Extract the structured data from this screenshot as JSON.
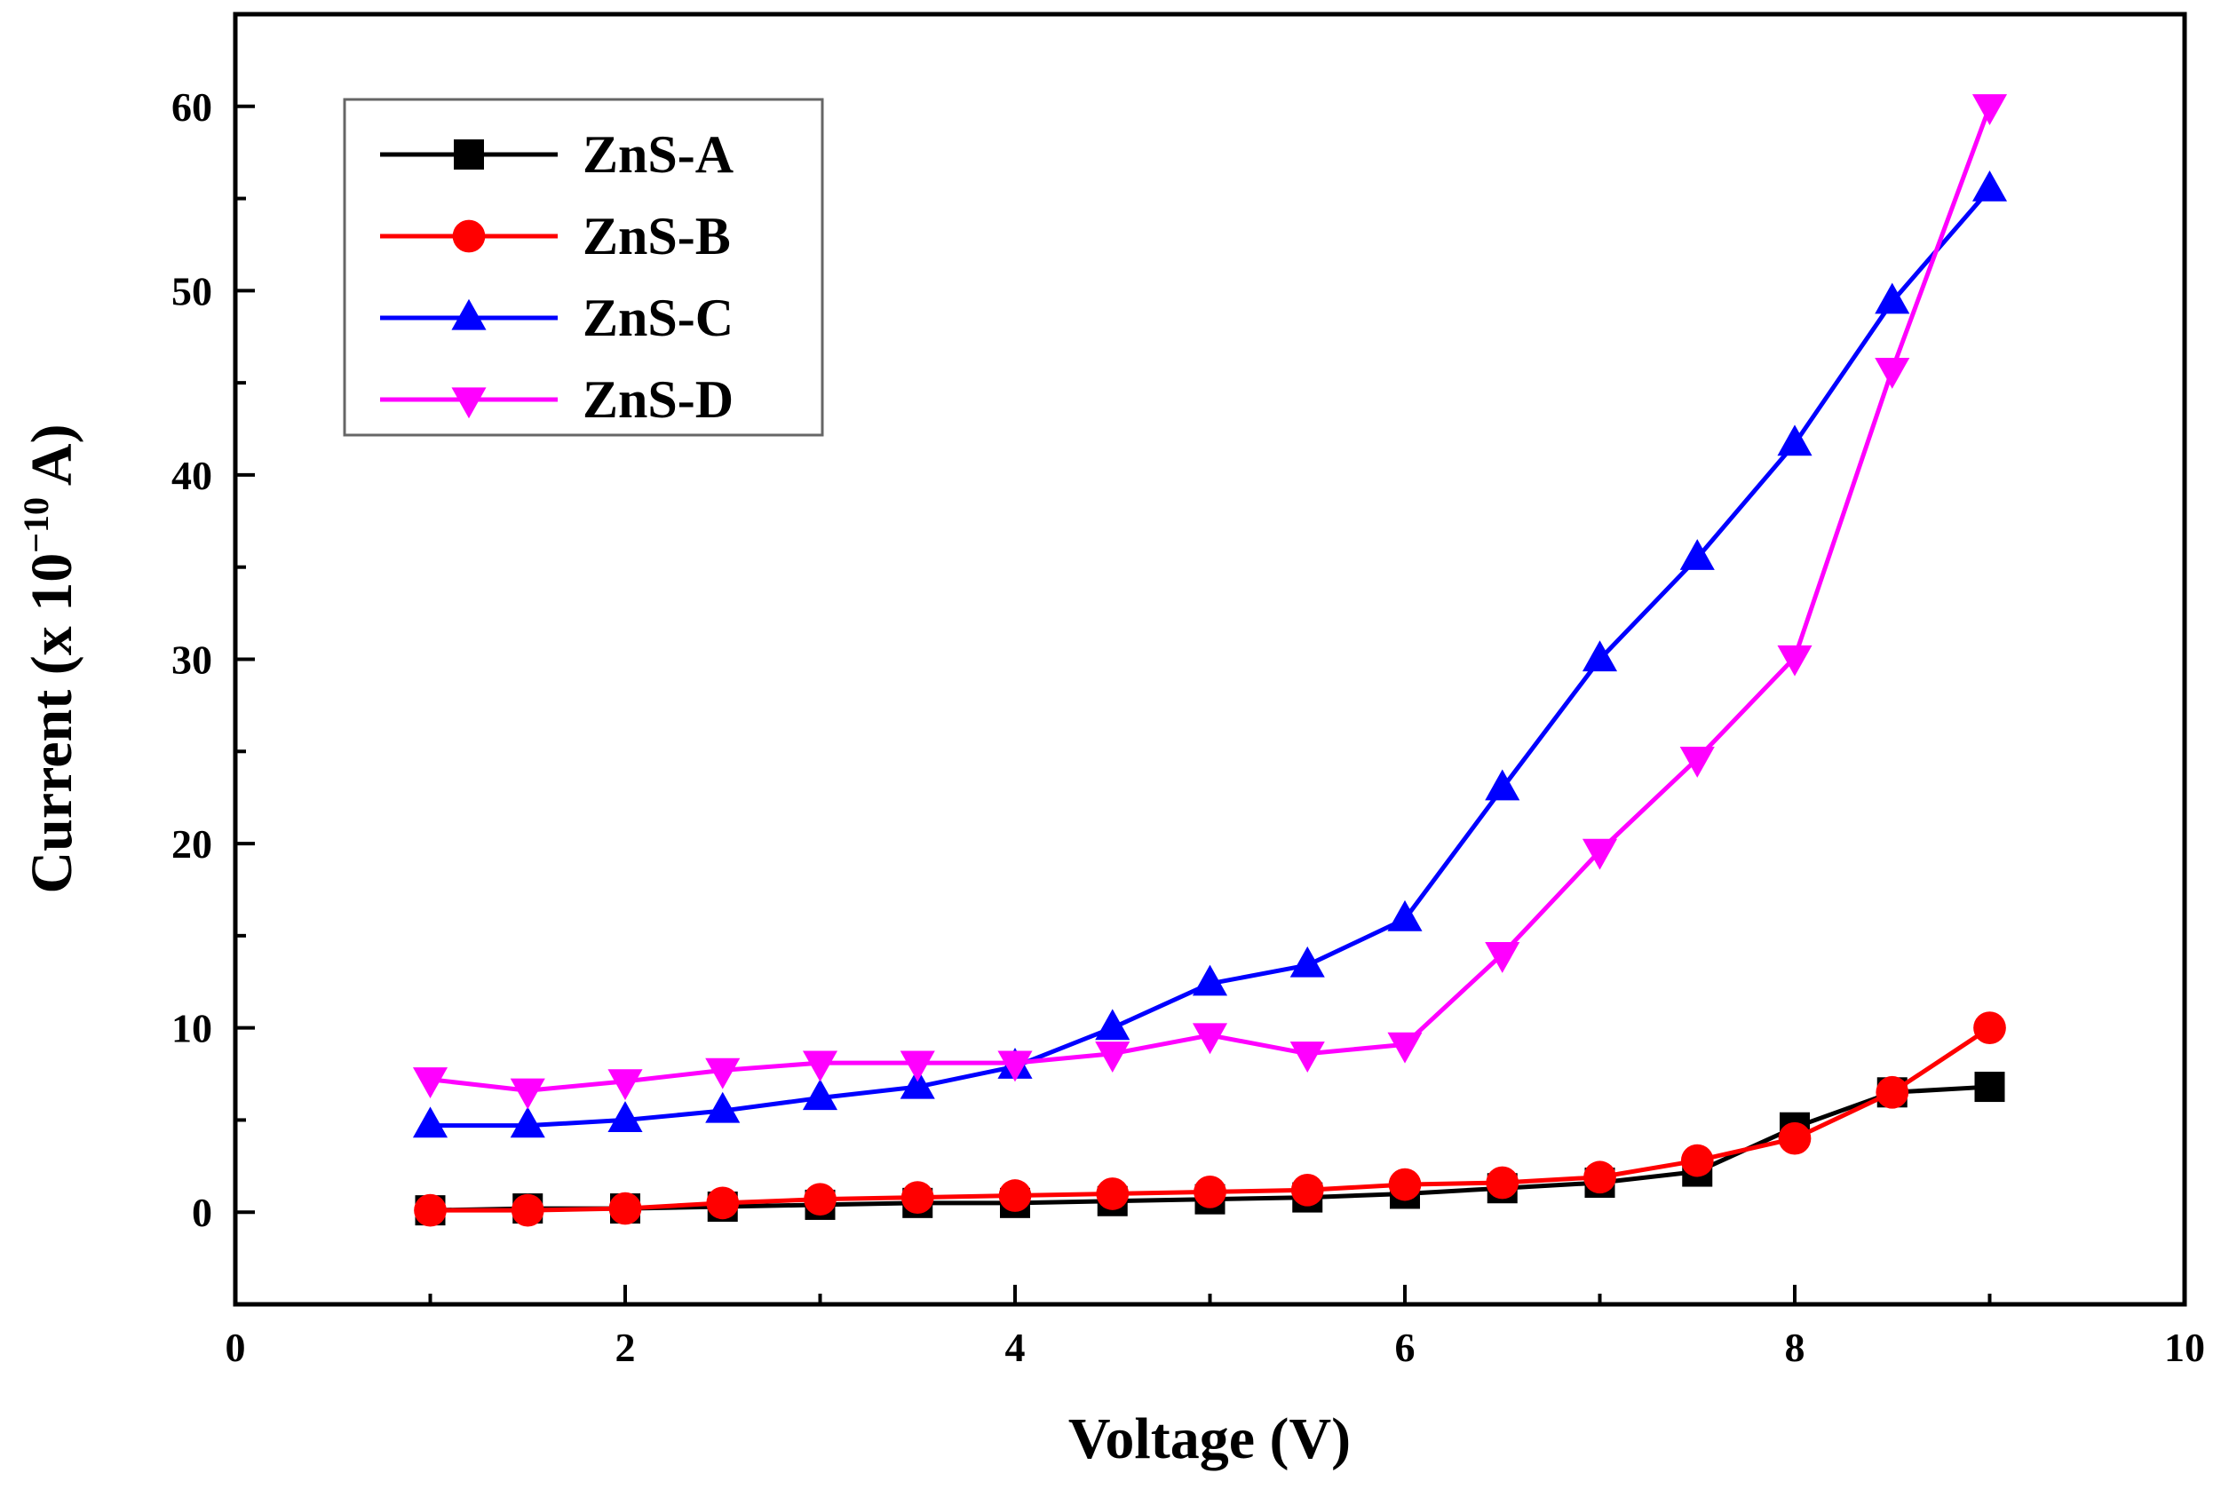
{
  "chart_data": {
    "type": "line",
    "title": "",
    "xlabel": "Voltage (V)",
    "ylabel": {
      "prefix": "Current (x 10",
      "exponent": "−10",
      "suffix": " A)"
    },
    "xlim": [
      0,
      10
    ],
    "ylim": [
      -5,
      65
    ],
    "xticks": [
      0,
      2,
      4,
      6,
      8,
      10
    ],
    "yticks": [
      0,
      10,
      20,
      30,
      40,
      50,
      60
    ],
    "grid": false,
    "legend_position": "top-left",
    "x": [
      1,
      1.5,
      2,
      2.5,
      3,
      3.5,
      4,
      4.5,
      5,
      5.5,
      6,
      6.5,
      7,
      7.5,
      8,
      8.5,
      9
    ],
    "series": [
      {
        "name": "ZnS-A",
        "color": "#000000",
        "marker": "square",
        "values": [
          0.1,
          0.2,
          0.2,
          0.3,
          0.4,
          0.5,
          0.5,
          0.6,
          0.7,
          0.8,
          1.0,
          1.3,
          1.6,
          2.2,
          4.6,
          6.5,
          6.8
        ]
      },
      {
        "name": "ZnS-B",
        "color": "#ff0000",
        "marker": "circle",
        "values": [
          0.1,
          0.1,
          0.2,
          0.5,
          0.7,
          0.8,
          0.9,
          1.0,
          1.1,
          1.2,
          1.5,
          1.6,
          1.9,
          2.8,
          4.0,
          6.5,
          10.0
        ]
      },
      {
        "name": "ZnS-C",
        "color": "#0000ff",
        "marker": "triangle-up",
        "values": [
          4.7,
          4.7,
          5.0,
          5.5,
          6.2,
          6.8,
          7.9,
          10.0,
          12.4,
          13.4,
          15.9,
          23.0,
          30.0,
          35.5,
          41.7,
          49.4,
          55.5
        ]
      },
      {
        "name": "ZnS-D",
        "color": "#ff00ff",
        "marker": "triangle-down",
        "values": [
          7.2,
          6.6,
          7.1,
          7.7,
          8.1,
          8.1,
          8.1,
          8.6,
          9.6,
          8.6,
          9.1,
          14.0,
          19.6,
          24.6,
          30.1,
          45.7,
          60.0
        ]
      }
    ]
  }
}
